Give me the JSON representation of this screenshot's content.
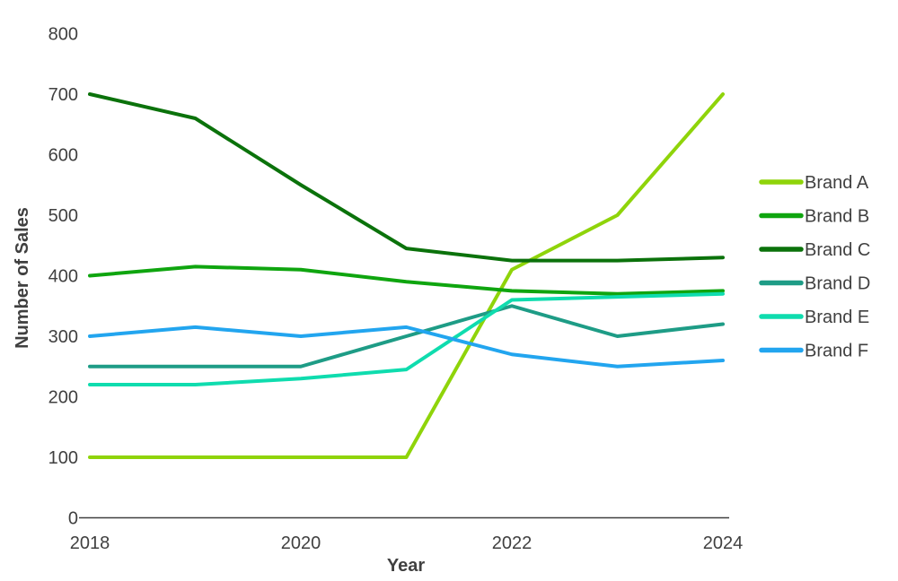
{
  "chart_data": {
    "type": "line",
    "title": "",
    "xlabel": "Year",
    "ylabel": "Number of Sales",
    "x": [
      2018,
      2019,
      2020,
      2021,
      2022,
      2023,
      2024
    ],
    "xlim": [
      2018,
      2024
    ],
    "ylim": [
      0,
      800
    ],
    "y_ticks": [
      0,
      100,
      200,
      300,
      400,
      500,
      600,
      700,
      800
    ],
    "x_tick_values": [
      2018,
      2020,
      2022,
      2024
    ],
    "x_tick_labels": [
      "2018",
      "2020",
      "2022",
      "2024"
    ],
    "grid": false,
    "legend_position": "right",
    "text_color": "#404040",
    "axis_color": "#404040",
    "background": "#ffffff",
    "series": [
      {
        "name": "Brand A",
        "color": "#8fd40a",
        "values": [
          100,
          100,
          100,
          100,
          410,
          500,
          700
        ]
      },
      {
        "name": "Brand B",
        "color": "#0fa50f",
        "values": [
          400,
          415,
          410,
          390,
          375,
          370,
          375
        ]
      },
      {
        "name": "Brand C",
        "color": "#0b720b",
        "values": [
          700,
          660,
          550,
          445,
          425,
          425,
          430
        ]
      },
      {
        "name": "Brand D",
        "color": "#1e9c86",
        "values": [
          250,
          250,
          250,
          300,
          350,
          300,
          320
        ]
      },
      {
        "name": "Brand E",
        "color": "#0fdcae",
        "values": [
          220,
          220,
          230,
          245,
          360,
          365,
          370
        ]
      },
      {
        "name": "Brand F",
        "color": "#22a5ef",
        "values": [
          300,
          315,
          300,
          315,
          270,
          250,
          260
        ]
      }
    ]
  }
}
